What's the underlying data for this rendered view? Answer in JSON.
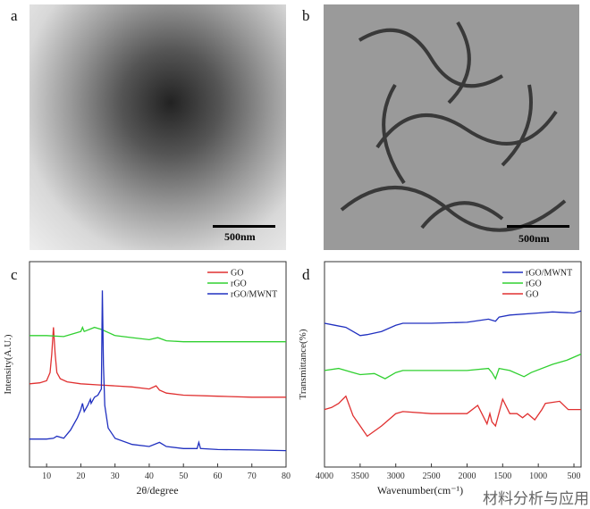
{
  "panels": {
    "a": {
      "label": "a",
      "scale_bar": "500nm"
    },
    "b": {
      "label": "b",
      "scale_bar": "500nm"
    },
    "c": {
      "label": "c"
    },
    "d": {
      "label": "d"
    }
  },
  "watermark": "材料分析与应用",
  "chart_data": [
    {
      "type": "line",
      "panel": "c",
      "xlabel": "2θ/degree",
      "ylabel": "Intensity(A.U.)",
      "xlim": [
        5,
        80
      ],
      "ylim": [
        0,
        100
      ],
      "xticks": [
        10,
        20,
        30,
        40,
        50,
        60,
        70,
        80
      ],
      "legend_position": "top-right",
      "grid": false,
      "series": [
        {
          "name": "GO",
          "color": "#e03030",
          "x": [
            5,
            8,
            10,
            11,
            11.5,
            12,
            12.5,
            13,
            14,
            16,
            20,
            25,
            30,
            35,
            40,
            42,
            43,
            45,
            50,
            60,
            70,
            80
          ],
          "y": [
            40.5,
            41,
            42,
            46,
            55,
            68,
            55,
            46,
            43,
            41.5,
            40.5,
            40,
            39.5,
            39,
            38,
            39.5,
            37.5,
            36,
            35,
            34.5,
            34,
            34
          ]
        },
        {
          "name": "rGO",
          "color": "#30d030",
          "x": [
            5,
            10,
            15,
            18,
            20,
            20.5,
            21,
            24,
            26,
            28,
            30,
            35,
            40,
            42.5,
            45,
            50,
            60,
            70,
            80
          ],
          "y": [
            64,
            64,
            63.5,
            65,
            66,
            68,
            66,
            68,
            67,
            65.5,
            64,
            63,
            62,
            63,
            61.5,
            61,
            61,
            61,
            61
          ]
        },
        {
          "name": "rGO/MWNT",
          "color": "#2030c0",
          "x": [
            5,
            10,
            12,
            13,
            15,
            17,
            19,
            20,
            20.5,
            21,
            22,
            22.8,
            23,
            24,
            25,
            26,
            26.3,
            26.6,
            27,
            28,
            30,
            35,
            40,
            43,
            45,
            50,
            54,
            54.5,
            55,
            60,
            70,
            80
          ],
          "y": [
            13.6,
            13.6,
            14,
            15,
            14,
            18,
            24,
            28,
            31,
            27,
            30,
            33,
            31,
            34,
            35,
            38,
            86,
            50,
            30,
            19,
            14,
            11,
            10,
            12,
            10,
            9,
            9,
            12,
            9,
            8.5,
            8.3,
            8
          ]
        }
      ]
    },
    {
      "type": "line",
      "panel": "d",
      "xlabel": "Wavenumber(cm⁻¹)",
      "ylabel": "Transmittance(%)",
      "xlim": [
        4000,
        400
      ],
      "ylim": [
        0,
        100
      ],
      "xticks": [
        4000,
        3500,
        3000,
        2500,
        2000,
        1500,
        1000,
        500
      ],
      "legend_position": "top-right",
      "grid": false,
      "series": [
        {
          "name": "rGO/MWNT",
          "color": "#2030c0",
          "x": [
            4000,
            3850,
            3700,
            3600,
            3500,
            3400,
            3200,
            3000,
            2900,
            2500,
            2000,
            1700,
            1600,
            1550,
            1400,
            1000,
            800,
            500,
            400
          ],
          "y": [
            70,
            69,
            68,
            66,
            64,
            64.5,
            66,
            69,
            70,
            70,
            70.5,
            72,
            71,
            73,
            74,
            75,
            75.5,
            75,
            76
          ]
        },
        {
          "name": "rGO",
          "color": "#30d030",
          "x": [
            4000,
            3800,
            3600,
            3500,
            3300,
            3150,
            3000,
            2900,
            2500,
            2000,
            1700,
            1650,
            1600,
            1550,
            1400,
            1200,
            1100,
            800,
            600,
            400
          ],
          "y": [
            47,
            48,
            46,
            45,
            45.5,
            43,
            46,
            47,
            47,
            47,
            48,
            46,
            43,
            48,
            47,
            44,
            46,
            50,
            52,
            55
          ]
        },
        {
          "name": "GO",
          "color": "#e03030",
          "x": [
            4000,
            3900,
            3800,
            3700,
            3600,
            3500,
            3400,
            3200,
            3000,
            2900,
            2500,
            2000,
            1850,
            1720,
            1680,
            1650,
            1600,
            1500,
            1400,
            1300,
            1220,
            1150,
            1050,
            950,
            900,
            700,
            580,
            500,
            400
          ],
          "y": [
            28,
            29,
            31,
            34.5,
            25,
            20,
            15,
            20,
            26,
            27,
            26,
            26,
            30,
            21,
            26,
            22,
            20,
            33,
            26,
            26,
            24,
            26,
            23,
            28,
            31,
            32,
            28,
            28,
            28
          ]
        }
      ]
    }
  ]
}
